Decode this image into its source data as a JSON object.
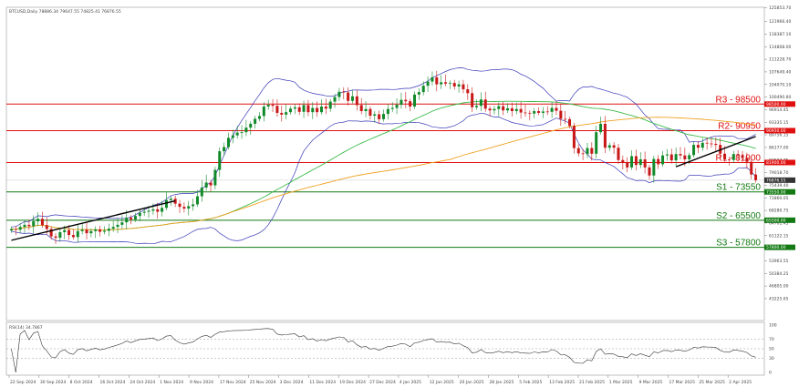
{
  "header": {
    "title": "BTCUSD,Daily  78886.34 79647.55 74825.41 76876.55"
  },
  "rsi_label": "RSI(14) 34.7867",
  "colors": {
    "bull": "#118a2a",
    "bear": "#c81818",
    "bands": "#3a3ab8",
    "ma_fast": "#3dbb4b",
    "ma_slow": "#f0a020",
    "trend": "#000000",
    "resistance": "#e01010",
    "support": "#137a13",
    "rsi": "#333333"
  },
  "chart_data": {
    "type": "candlestick",
    "price_scale": {
      "min": 37000,
      "max": 126000
    },
    "price_ticks": [
      "125853.70",
      "121966.40",
      "118387.10",
      "114808.00",
      "111228.70",
      "107649.40",
      "104070.10",
      "100490.80",
      "96914.45",
      "93335.15",
      "89756.15",
      "86177.00",
      "82597.75",
      "79018.70",
      "75439.40",
      "71860.05",
      "68280.75",
      "64701.45",
      "61122.15",
      "57542.85",
      "53963.55",
      "50384.25",
      "46805.00",
      "43225.65"
    ],
    "price_tick_values": [
      125853.7,
      121966.4,
      118387.1,
      114808,
      111228.7,
      107649.4,
      104070.1,
      100490.8,
      96914.45,
      93335.15,
      89756.15,
      86177,
      82597.75,
      79018.7,
      75439.4,
      71860.05,
      68280.75,
      64701.45,
      61122.15,
      57542.85,
      53963.55,
      50384.25,
      46805,
      43225.65
    ],
    "current_price_label": "76876.55",
    "x_labels": [
      "22 Sep 2024",
      "30 Sep 2024",
      "8 Oct 2024",
      "16 Oct 2024",
      "24 Oct 2024",
      "1 Nov 2024",
      "9 Nov 2024",
      "17 Nov 2024",
      "25 Nov 2024",
      "3 Dec 2024",
      "11 Dec 2024",
      "19 Dec 2024",
      "27 Dec 2024",
      "4 Jan 2025",
      "12 Jan 2025",
      "20 Jan 2025",
      "28 Jan 2025",
      "5 Feb 2025",
      "13 Feb 2025",
      "21 Feb 2025",
      "1 Mar 2025",
      "9 Mar 2025",
      "17 Mar 2025",
      "25 Mar 2025",
      "2 Apr 2025"
    ],
    "closes": [
      63000,
      62800,
      63600,
      64200,
      63800,
      65200,
      65900,
      64100,
      63000,
      60900,
      60500,
      62100,
      62700,
      61300,
      60700,
      62400,
      62800,
      61800,
      62400,
      62900,
      62200,
      62500,
      63100,
      63600,
      64200,
      64900,
      66200,
      65700,
      66700,
      67600,
      67900,
      68200,
      68600,
      67900,
      69000,
      71200,
      71600,
      70200,
      69300,
      68800,
      69500,
      70000,
      72300,
      74800,
      76200,
      75400,
      79800,
      85100,
      86300,
      88900,
      89600,
      90400,
      90500,
      91800,
      92900,
      94300,
      95100,
      97800,
      98300,
      98000,
      96000,
      95500,
      96200,
      97200,
      97600,
      96300,
      98200,
      96200,
      97400,
      96200,
      97800,
      97200,
      99200,
      100500,
      102000,
      101800,
      99400,
      100700,
      98200,
      96500,
      97100,
      95200,
      95600,
      94200,
      95700,
      97100,
      97400,
      98300,
      99700,
      99300,
      97800,
      101200,
      101900,
      103700,
      104900,
      106100,
      104100,
      104700,
      104300,
      104500,
      103500,
      104100,
      102700,
      101600,
      97600,
      98000,
      99800,
      97200,
      96700,
      97100,
      97900,
      96700,
      97300,
      96500,
      97100,
      96100,
      96000,
      95800,
      96500,
      96000,
      96400,
      96300,
      97400,
      96600,
      94300,
      94200,
      92300,
      86000,
      84500,
      84300,
      86000,
      84400,
      90500,
      92900,
      86100,
      86800,
      86100,
      82600,
      81900,
      80500,
      83700,
      81200,
      82800,
      80500,
      78200,
      82900,
      81400,
      83900,
      84200,
      82500,
      84300,
      83900,
      82800,
      84000,
      86900,
      86100,
      87500,
      87300,
      87200,
      86900,
      84400,
      82800,
      82600,
      84300,
      83900,
      83200,
      82100,
      78500,
      76880
    ],
    "levels": [
      {
        "label": "R3 - 98500",
        "value": 98500,
        "kind": "resistance"
      },
      {
        "label": "R2- 90950",
        "value": 90950,
        "kind": "resistance"
      },
      {
        "label": "R1 - 81900",
        "value": 81900,
        "kind": "resistance"
      },
      {
        "label": "S1 - 73550",
        "value": 73550,
        "kind": "support"
      },
      {
        "label": "S2 - 65500",
        "value": 65500,
        "kind": "support"
      },
      {
        "label": "S3 - 57800",
        "value": 57800,
        "kind": "support"
      }
    ],
    "level_tag_labels": [
      "98500.00",
      "90950.00",
      "81900.00",
      "73550.00",
      "65500.00",
      "57800.00"
    ],
    "trendlines": [
      {
        "from": {
          "index": 0,
          "price": 59800
        },
        "to": {
          "index": 37,
          "price": 71000
        }
      },
      {
        "from": {
          "index": 150,
          "price": 80700
        },
        "to": {
          "index": 168,
          "price": 89300
        }
      }
    ],
    "rsi": {
      "scale": {
        "min": 0,
        "max": 100
      },
      "ticks": [
        "100",
        "70",
        "50",
        "30",
        "0"
      ],
      "tick_values": [
        100,
        70,
        50,
        30,
        0
      ],
      "levels": [
        70,
        50,
        30
      ]
    }
  }
}
